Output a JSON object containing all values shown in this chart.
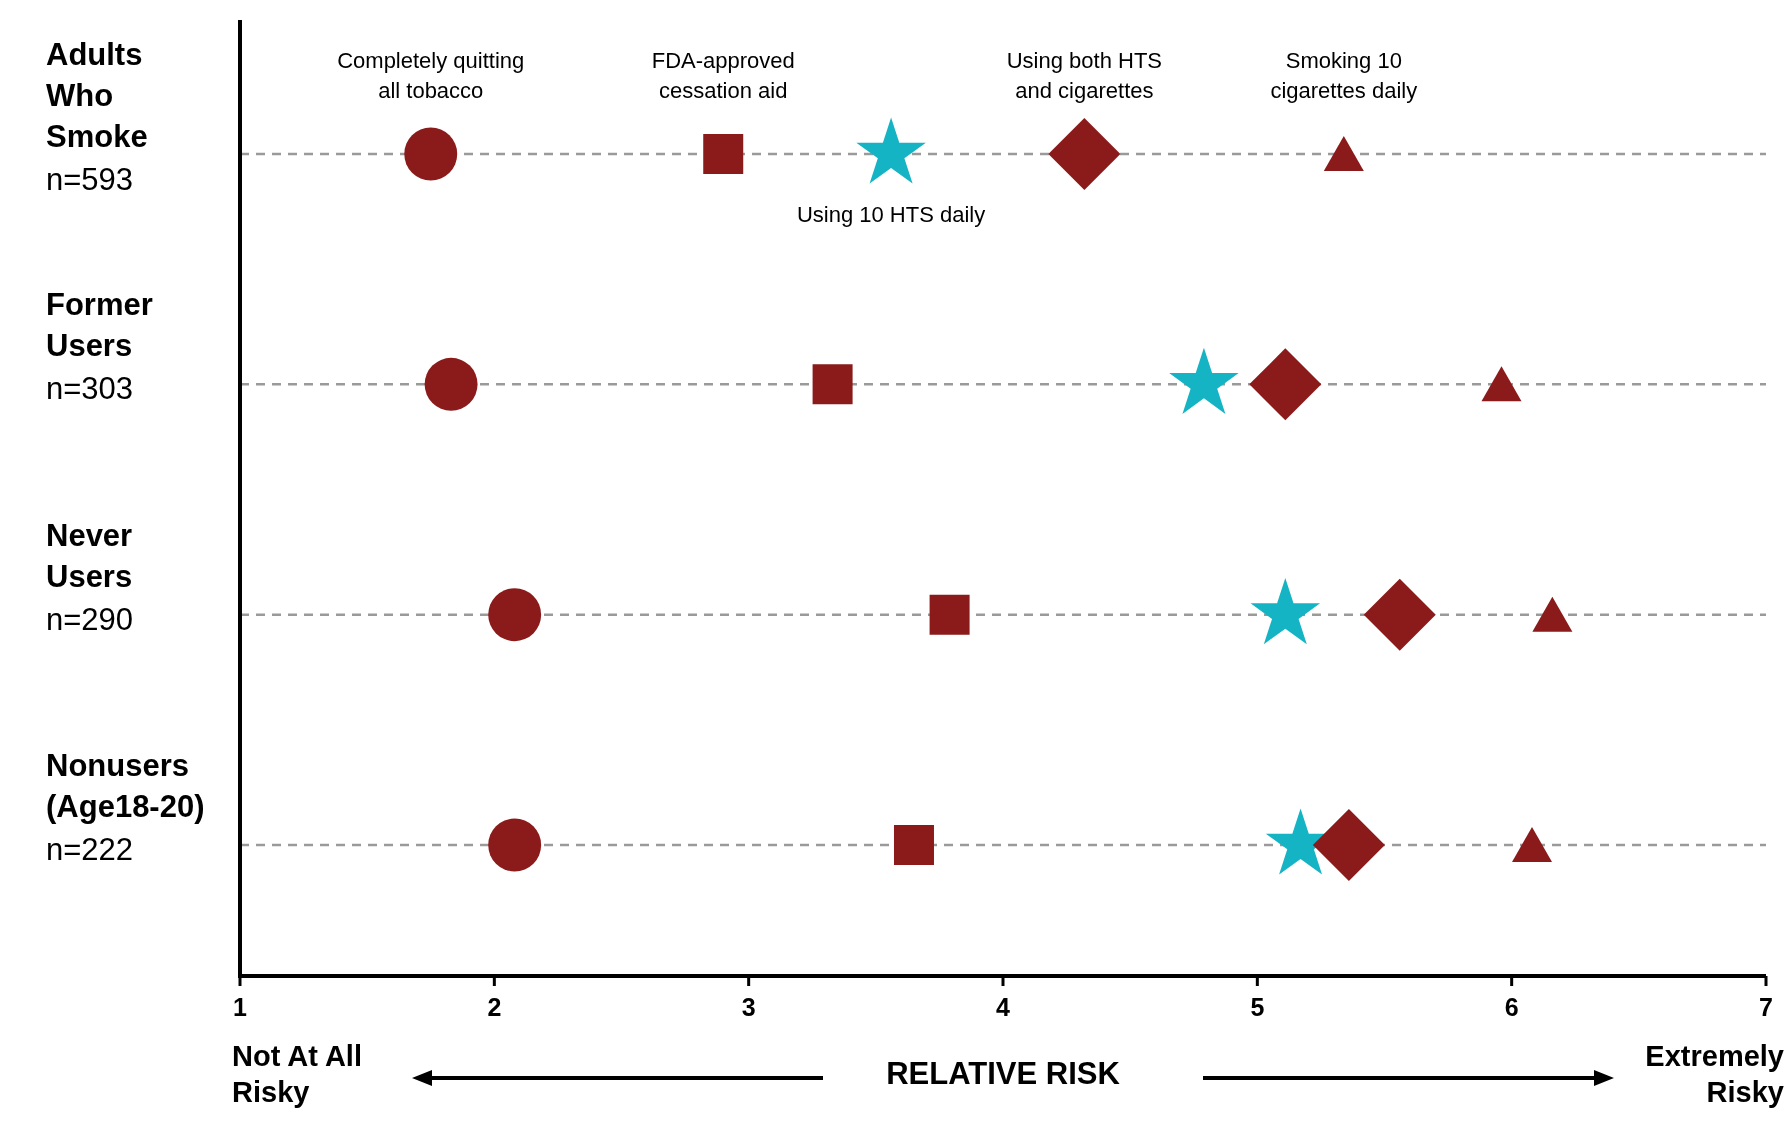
{
  "chart_data": {
    "type": "scatter",
    "orientation": "horizontal",
    "categories": [
      "Adults Who Smoke\nn=593",
      "Former Users\nn=303",
      "Never Users\nn=290",
      "Nonusers (Age18-20)\nn=222"
    ],
    "series": [
      {
        "name": "Completely quitting all tobacco",
        "color": "#8b1a1a",
        "marker": "circle",
        "values": [
          1.75,
          1.83,
          2.08,
          2.08
        ]
      },
      {
        "name": "FDA-approved cessation aid",
        "color": "#8b1a1a",
        "marker": "square",
        "values": [
          2.9,
          3.33,
          3.79,
          3.65
        ]
      },
      {
        "name": "Using 10 HTS daily",
        "color": "#14b4c4",
        "marker": "star",
        "values": [
          3.56,
          4.79,
          5.11,
          5.17
        ]
      },
      {
        "name": "Using both HTS and cigarettes",
        "color": "#8b1a1a",
        "marker": "diamond",
        "values": [
          4.32,
          5.11,
          5.56,
          5.36
        ]
      },
      {
        "name": "Smoking 10 cigarettes daily",
        "color": "#8b1a1a",
        "marker": "triangle",
        "values": [
          5.34,
          5.96,
          6.16,
          6.08
        ]
      }
    ],
    "xlim": [
      1,
      7
    ],
    "xticks": [
      1,
      2,
      3,
      4,
      5,
      6,
      7
    ],
    "xlabel": "RELATIVE RISK",
    "annotations": [
      "Not At All Risky",
      "Extremely Risky"
    ],
    "grid": "y"
  }
}
